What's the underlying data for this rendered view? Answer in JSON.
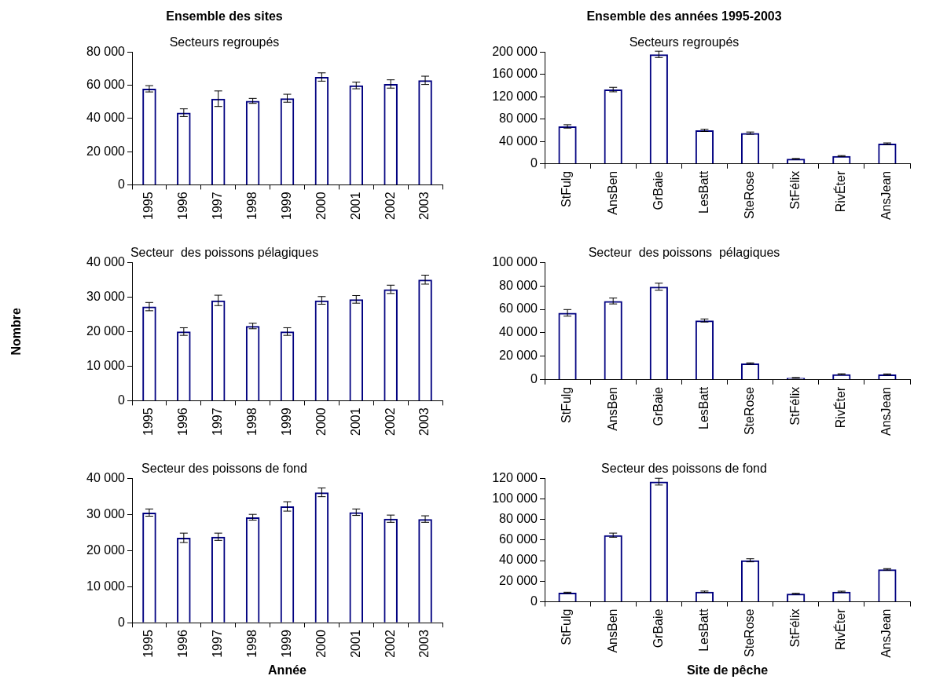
{
  "chart_data": [
    {
      "type": "bar",
      "title": "Ensemble des sites",
      "subtitle": "Secteurs regroupés",
      "categories": [
        "1995",
        "1996",
        "1997",
        "1998",
        "1999",
        "2000",
        "2001",
        "2002",
        "2003"
      ],
      "values": [
        57900,
        43500,
        51900,
        50600,
        52200,
        65000,
        59900,
        60800,
        63000
      ],
      "errors": [
        1900,
        2300,
        4700,
        1500,
        2400,
        2500,
        2000,
        2500,
        2500
      ],
      "color": "#000080",
      "ylim": [
        0,
        80000
      ],
      "yticks": [
        {
          "value": 0,
          "label": "0"
        },
        {
          "value": 20000,
          "label": "20 000"
        },
        {
          "value": 40000,
          "label": "40 000"
        },
        {
          "value": 60000,
          "label": "60 000"
        },
        {
          "value": 80000,
          "label": "80 000"
        }
      ],
      "grid": false
    },
    {
      "type": "bar",
      "title": "Ensemble des années 1995-2003",
      "subtitle": "Secteurs regroupés",
      "categories": [
        "StFulg",
        "AnsBen",
        "GrBaie",
        "LesBatt",
        "SteRose",
        "StFélix",
        "RivÉter",
        "AnsJean"
      ],
      "values": [
        67000,
        133000,
        196000,
        60000,
        55000,
        9000,
        14000,
        36000
      ],
      "errors": [
        3000,
        4000,
        5700,
        2000,
        2000,
        600,
        800,
        1500
      ],
      "color": "#000080",
      "ylim": [
        0,
        200000
      ],
      "yticks": [
        {
          "value": 0,
          "label": "0"
        },
        {
          "value": 40000,
          "label": "40 000"
        },
        {
          "value": 80000,
          "label": "80 000"
        },
        {
          "value": 120000,
          "label": "120 000"
        },
        {
          "value": 160000,
          "label": "160 000"
        },
        {
          "value": 200000,
          "label": "200 000"
        }
      ],
      "grid": false
    },
    {
      "type": "bar",
      "subtitle": "Secteur  des poissons pélagiques",
      "ylabel": "Nombre",
      "categories": [
        "1995",
        "1996",
        "1997",
        "1998",
        "1999",
        "2000",
        "2001",
        "2002",
        "2003"
      ],
      "values": [
        27200,
        20000,
        29000,
        21600,
        20000,
        29000,
        29300,
        32200,
        35000
      ],
      "errors": [
        1200,
        1100,
        1500,
        800,
        1100,
        1100,
        1100,
        1200,
        1300
      ],
      "color": "#000080",
      "ylim": [
        0,
        40000
      ],
      "yticks": [
        {
          "value": 0,
          "label": "0"
        },
        {
          "value": 10000,
          "label": "10 000"
        },
        {
          "value": 20000,
          "label": "20 000"
        },
        {
          "value": 30000,
          "label": "30 000"
        },
        {
          "value": 40000,
          "label": "40 000"
        }
      ],
      "grid": false
    },
    {
      "type": "bar",
      "subtitle": "Secteur  des poissons  pélagiques",
      "categories": [
        "StFulg",
        "AnsBen",
        "GrBaie",
        "LesBatt",
        "SteRose",
        "StFélix",
        "RivÉter",
        "AnsJean"
      ],
      "values": [
        57000,
        67100,
        79300,
        50500,
        13800,
        1600,
        4700,
        4500
      ],
      "errors": [
        2800,
        2500,
        3000,
        1300,
        600,
        300,
        400,
        500
      ],
      "color": "#000080",
      "ylim": [
        0,
        100000
      ],
      "yticks": [
        {
          "value": 0,
          "label": "0"
        },
        {
          "value": 20000,
          "label": "20 000"
        },
        {
          "value": 40000,
          "label": "40 000"
        },
        {
          "value": 60000,
          "label": "60 000"
        },
        {
          "value": 80000,
          "label": "80 000"
        },
        {
          "value": 100000,
          "label": "100 000"
        }
      ],
      "grid": false
    },
    {
      "type": "bar",
      "subtitle": "Secteur des poissons de fond",
      "xlabel": "Année",
      "categories": [
        "1995",
        "1996",
        "1997",
        "1998",
        "1999",
        "2000",
        "2001",
        "2002",
        "2003"
      ],
      "values": [
        30500,
        23500,
        23800,
        29200,
        32200,
        36100,
        30600,
        28800,
        28700
      ],
      "errors": [
        1000,
        1300,
        1000,
        800,
        1300,
        1200,
        900,
        1000,
        900
      ],
      "color": "#000080",
      "ylim": [
        0,
        40000
      ],
      "yticks": [
        {
          "value": 0,
          "label": "0"
        },
        {
          "value": 10000,
          "label": "10 000"
        },
        {
          "value": 20000,
          "label": "20 000"
        },
        {
          "value": 30000,
          "label": "30 000"
        },
        {
          "value": 40000,
          "label": "40 000"
        }
      ],
      "grid": false
    },
    {
      "type": "bar",
      "subtitle": "Secteur des poissons de fond",
      "xlabel": "Site de pêche",
      "categories": [
        "StFulg",
        "AnsBen",
        "GrBaie",
        "LesBatt",
        "SteRose",
        "StFélix",
        "RivÉter",
        "AnsJean"
      ],
      "values": [
        8800,
        64700,
        116700,
        9800,
        40300,
        7800,
        9800,
        31500
      ],
      "errors": [
        500,
        2000,
        3300,
        600,
        1500,
        400,
        500,
        700
      ],
      "color": "#000080",
      "ylim": [
        0,
        120000
      ],
      "yticks": [
        {
          "value": 0,
          "label": "0"
        },
        {
          "value": 20000,
          "label": "20 000"
        },
        {
          "value": 40000,
          "label": "40 000"
        },
        {
          "value": 60000,
          "label": "60 000"
        },
        {
          "value": 80000,
          "label": "80 000"
        },
        {
          "value": 100000,
          "label": "100 000"
        },
        {
          "value": 120000,
          "label": "120 000"
        }
      ],
      "grid": false
    }
  ]
}
